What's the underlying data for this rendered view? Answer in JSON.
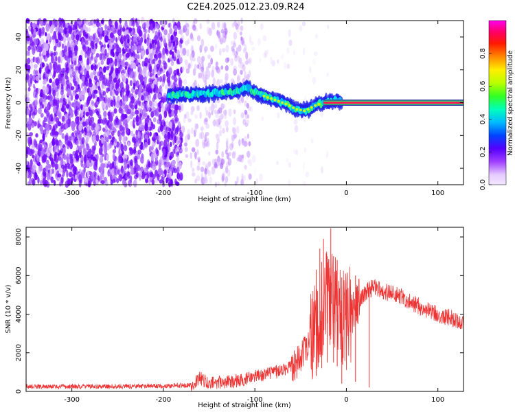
{
  "title": "C2E4.2025.012.23.09.R24",
  "chart_data": [
    {
      "type": "heatmap",
      "xlabel": "Height of straight line (km)",
      "ylabel": "Frequency (Hz)",
      "xlim": [
        -350,
        128
      ],
      "ylim": [
        -50,
        50
      ],
      "xticks": [
        "-300",
        "-200",
        "-100",
        "0",
        "100"
      ],
      "yticks": [
        "-40",
        "-20",
        "0",
        "20",
        "40"
      ],
      "colorbar": {
        "label": "Normalized spectral amplitude",
        "range": [
          0,
          1
        ],
        "ticks": [
          "0.0",
          "0.2",
          "0.4",
          "0.6",
          "0.8"
        ]
      },
      "ridge": [
        {
          "x": -195,
          "y": 4
        },
        {
          "x": -180,
          "y": 5
        },
        {
          "x": -160,
          "y": 5
        },
        {
          "x": -140,
          "y": 6
        },
        {
          "x": -120,
          "y": 7
        },
        {
          "x": -108,
          "y": 9
        },
        {
          "x": -95,
          "y": 5
        },
        {
          "x": -80,
          "y": 2
        },
        {
          "x": -65,
          "y": -1
        },
        {
          "x": -55,
          "y": -4
        },
        {
          "x": -45,
          "y": -5
        },
        {
          "x": -35,
          "y": -2
        },
        {
          "x": -25,
          "y": 0
        },
        {
          "x": -15,
          "y": 1
        },
        {
          "x": 0,
          "y": 1
        },
        {
          "x": 128,
          "y": 0
        }
      ],
      "carrier_line": {
        "x_start": -25,
        "x_end": 128,
        "y": 0
      }
    },
    {
      "type": "line",
      "xlabel": "Height of straight line (km)",
      "ylabel": "SNR (10 * v/v)",
      "xlim": [
        -350,
        128
      ],
      "ylim": [
        0,
        8500
      ],
      "xticks": [
        "-300",
        "-200",
        "-100",
        "0",
        "100"
      ],
      "yticks": [
        "0",
        "2000",
        "4000",
        "6000",
        "8000"
      ],
      "color": "#ee3333",
      "envelope": {
        "x": [
          -350,
          -300,
          -250,
          -200,
          -170,
          -160,
          -150,
          -120,
          -100,
          -80,
          -60,
          -45,
          -35,
          -25,
          -15,
          -8,
          0,
          10,
          20,
          30,
          40,
          60,
          80,
          100,
          128
        ],
        "y": [
          250,
          250,
          260,
          280,
          320,
          700,
          400,
          550,
          750,
          950,
          1300,
          2000,
          3000,
          4500,
          5000,
          4000,
          3600,
          4400,
          5100,
          5400,
          5200,
          4900,
          4400,
          4000,
          3600
        ]
      },
      "spikes": [
        {
          "x": -33,
          "y": 6300
        },
        {
          "x": -29,
          "y": 7400
        },
        {
          "x": -27,
          "y": 6700
        },
        {
          "x": -25,
          "y": 7900
        },
        {
          "x": -21,
          "y": 7000
        },
        {
          "x": -17,
          "y": 8450
        },
        {
          "x": -14,
          "y": 7000
        },
        {
          "x": -10,
          "y": 6800
        },
        {
          "x": -5,
          "y": 5900
        },
        {
          "x": 10,
          "y": 6000
        },
        {
          "x": 25,
          "y": 5700
        }
      ]
    }
  ]
}
